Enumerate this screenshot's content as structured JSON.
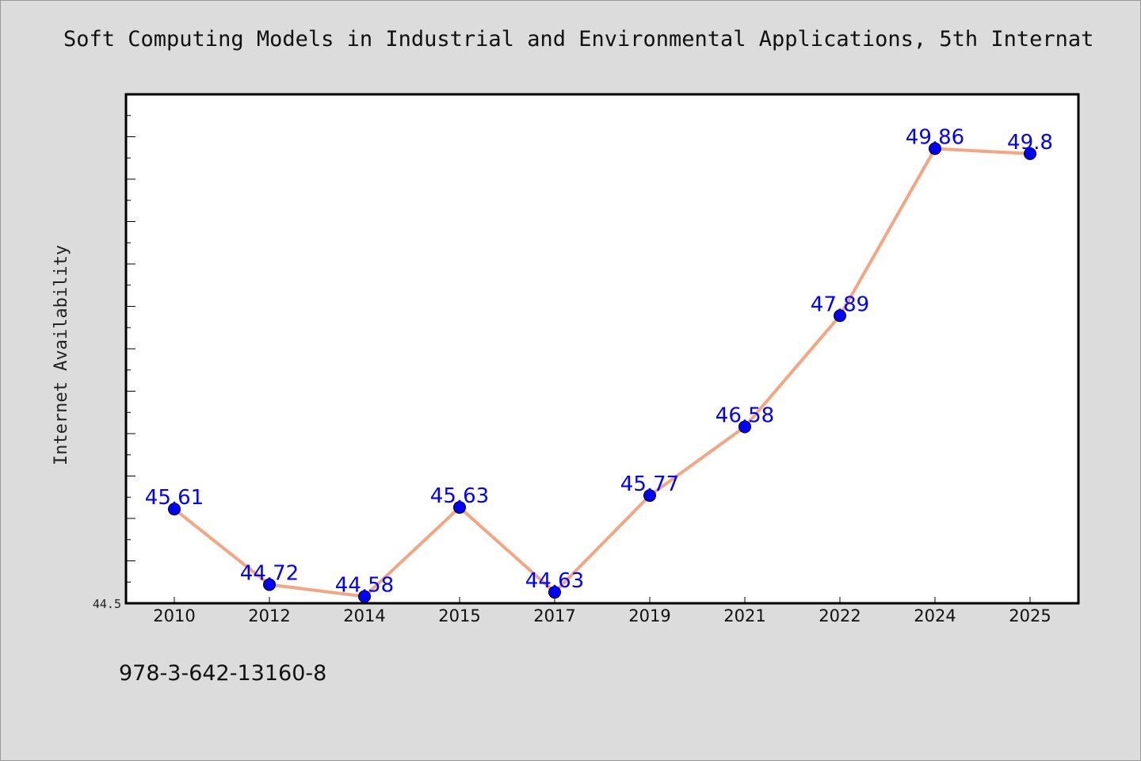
{
  "chart_data": {
    "type": "line",
    "title": "Soft Computing Models in Industrial and Environmental Applications, 5th Internat",
    "ylabel": "Internet Availability",
    "xlabel": "",
    "categories": [
      "2010",
      "2012",
      "2014",
      "2015",
      "2017",
      "2019",
      "2021",
      "2022",
      "2024",
      "2025"
    ],
    "series": [
      {
        "values": [
          45.61,
          44.72,
          44.58,
          45.63,
          44.63,
          45.77,
          46.58,
          47.89,
          49.86,
          49.8
        ],
        "data_labels": [
          "45.61",
          "44.72",
          "44.58",
          "45.63",
          "44.63",
          "45.77",
          "46.58",
          "47.89",
          "49.86",
          "49.8"
        ]
      }
    ],
    "ylim": [
      44.5,
      50.5
    ],
    "y_tick_label": "44.5",
    "grid": false,
    "colors": {
      "line": "#f4a582",
      "marker": "#0000ff",
      "data_label": "#0000ff",
      "background": "#dcdcdc",
      "plot_area": "#ffffff"
    }
  },
  "footer": {
    "isbn": "978-3-642-13160-8"
  }
}
